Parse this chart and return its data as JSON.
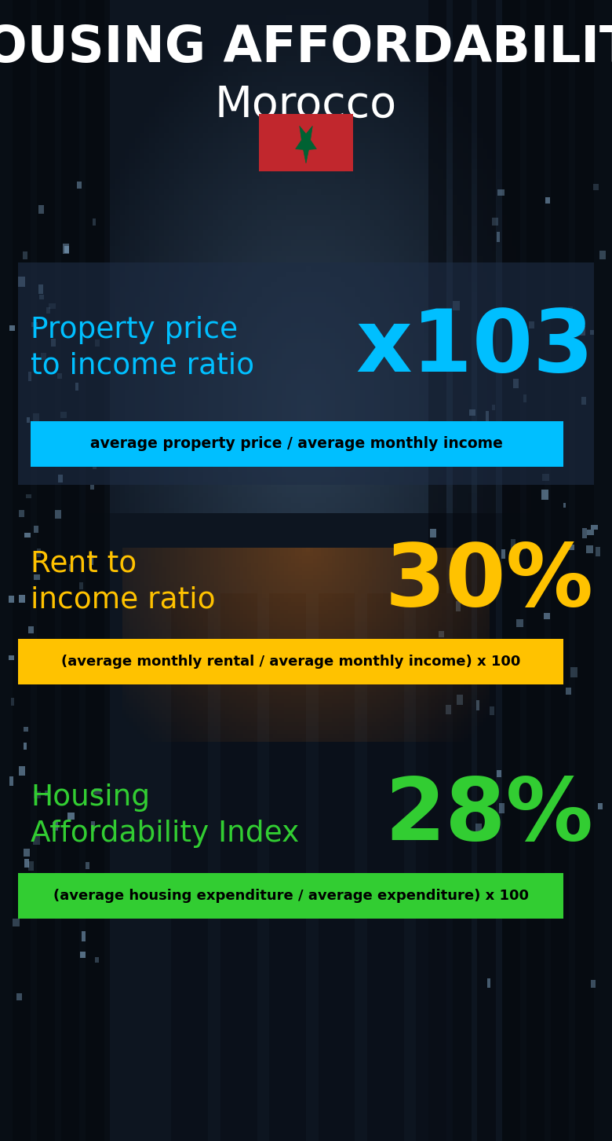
{
  "title_line1": "HOUSING AFFORDABILITY",
  "title_line2": "Morocco",
  "bg_color": "#0d1520",
  "title1_color": "#ffffff",
  "title2_color": "#ffffff",
  "flag_red": "#c1272d",
  "flag_green": "#006233",
  "section1_label": "Property price\nto income ratio",
  "section1_value": "x103",
  "section1_label_color": "#00bfff",
  "section1_value_color": "#00bfff",
  "section1_band_text": "average property price / average monthly income",
  "section1_band_bg": "#00bfff",
  "section1_band_text_color": "#000000",
  "section2_label": "Rent to\nincome ratio",
  "section2_value": "30%",
  "section2_label_color": "#ffc200",
  "section2_value_color": "#ffc200",
  "section2_band_text": "(average monthly rental / average monthly income) x 100",
  "section2_band_bg": "#ffc200",
  "section2_band_text_color": "#000000",
  "section3_label": "Housing\nAffordability Index",
  "section3_value": "28%",
  "section3_label_color": "#32cd32",
  "section3_value_color": "#32cd32",
  "section3_band_text": "(average housing expenditure / average expenditure) x 100",
  "section3_band_bg": "#32cd32",
  "section3_band_text_color": "#000000",
  "figsize": [
    7.8,
    14.52
  ],
  "dpi": 100
}
